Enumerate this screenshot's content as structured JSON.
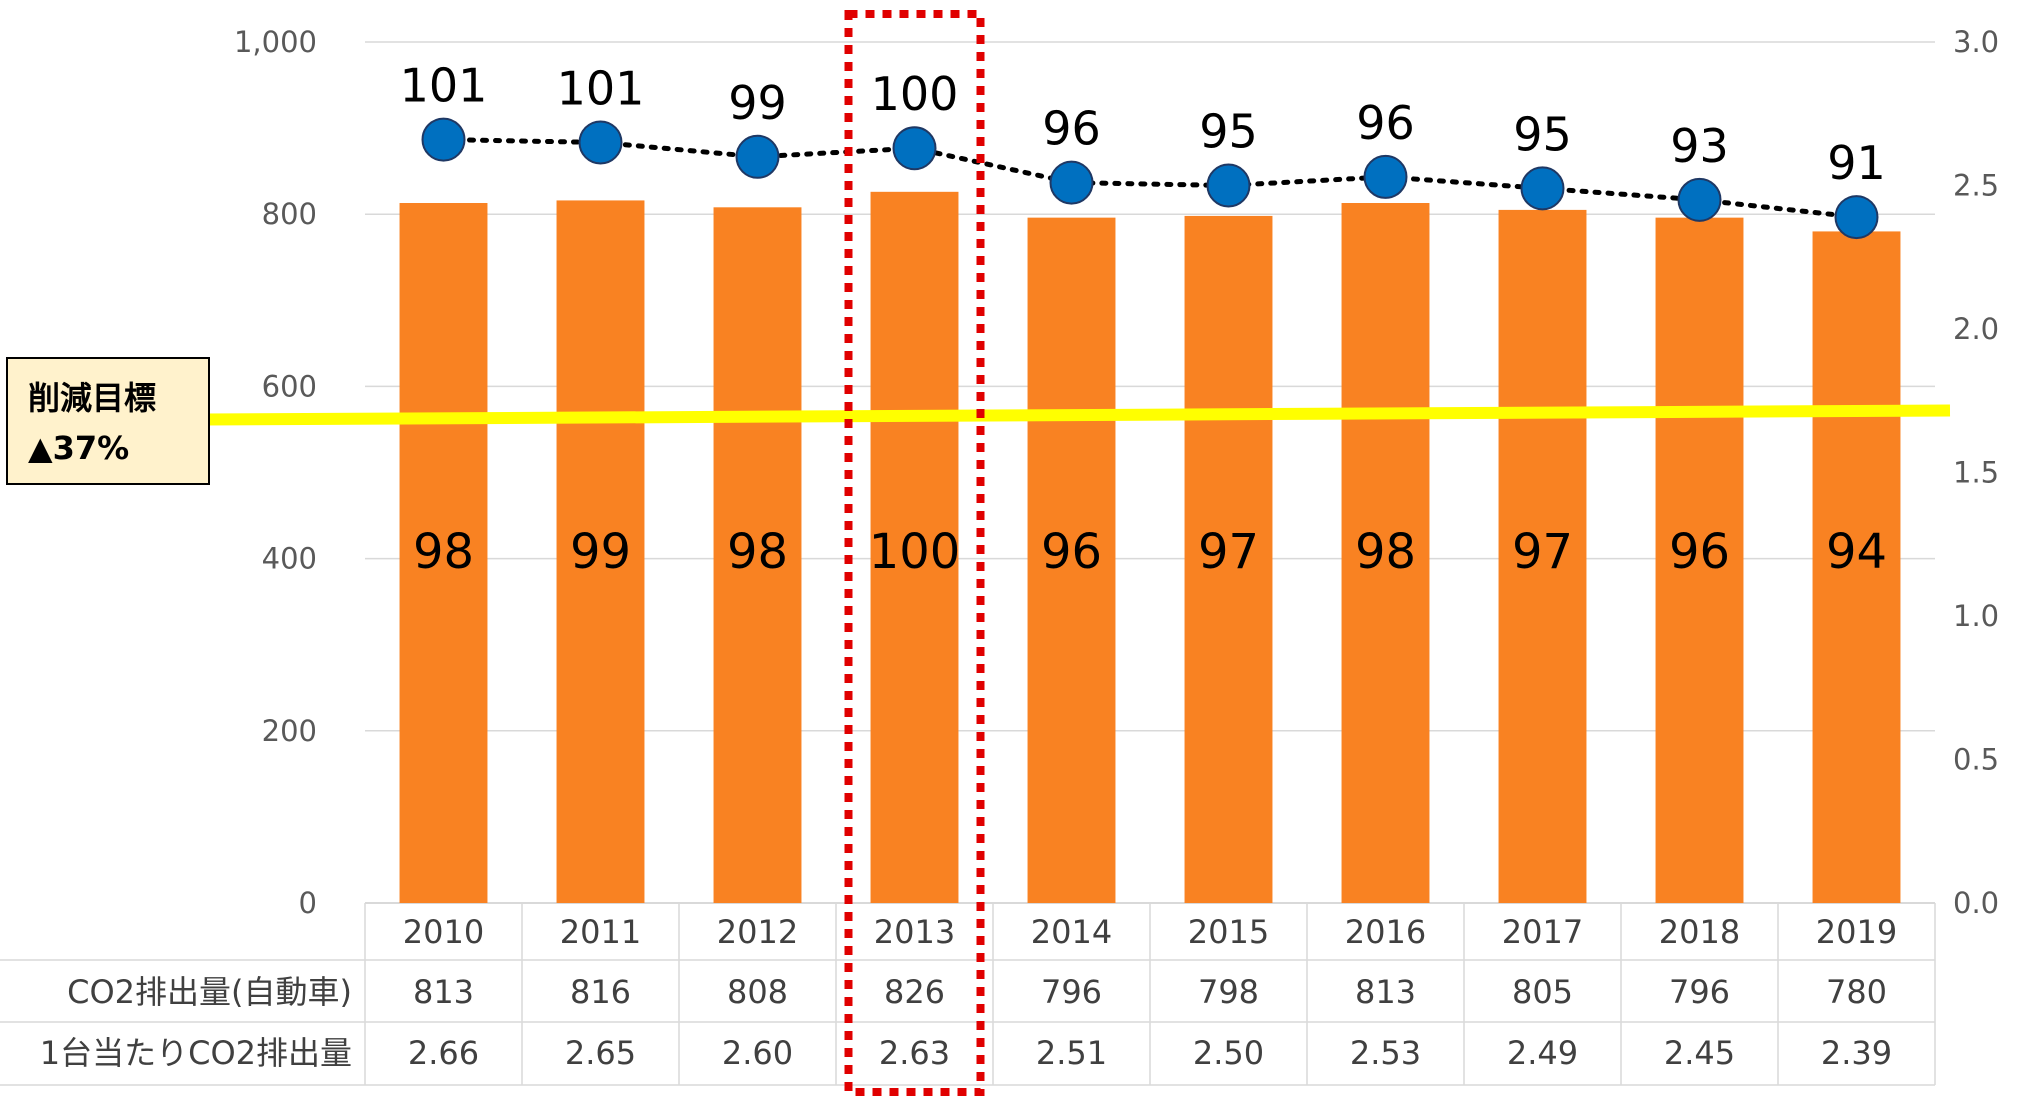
{
  "chart_data": {
    "type": "bar",
    "categories": [
      "2010",
      "2011",
      "2012",
      "2013",
      "2014",
      "2015",
      "2016",
      "2017",
      "2018",
      "2019"
    ],
    "series": [
      {
        "name": "CO2排出量(自動車)",
        "type": "bar",
        "axis": "left",
        "color": "#F98222",
        "values": [
          813,
          816,
          808,
          826,
          796,
          798,
          813,
          805,
          796,
          780
        ],
        "data_labels": [
          "98",
          "99",
          "98",
          "100",
          "96",
          "97",
          "98",
          "97",
          "96",
          "94"
        ]
      },
      {
        "name": "1台当たりCO2排出量",
        "type": "line",
        "axis": "right",
        "color": "#0070C0",
        "values": [
          2.66,
          2.65,
          2.6,
          2.63,
          2.51,
          2.5,
          2.53,
          2.49,
          2.45,
          2.39
        ],
        "data_labels": [
          "101",
          "101",
          "99",
          "100",
          "96",
          "95",
          "96",
          "95",
          "93",
          "91"
        ]
      }
    ],
    "y_left": {
      "min": 0,
      "max": 1000,
      "ticks": [
        "0",
        "200",
        "400",
        "600",
        "800",
        "1,000"
      ]
    },
    "y_right": {
      "min": 0,
      "max": 3,
      "ticks": [
        "0.0",
        "0.5",
        "1.0",
        "1.5",
        "2.0",
        "2.5",
        "3.0"
      ]
    },
    "grid": true,
    "data_table": {
      "row_labels": [
        "CO2排出量(自動車)",
        "1台当たりCO2排出量"
      ],
      "rows": [
        [
          "813",
          "816",
          "808",
          "826",
          "796",
          "798",
          "813",
          "805",
          "796",
          "780"
        ],
        [
          "2.66",
          "2.65",
          "2.60",
          "2.63",
          "2.51",
          "2.50",
          "2.53",
          "2.49",
          "2.45",
          "2.39"
        ]
      ]
    },
    "target_line": {
      "value": 565,
      "label_line1": "削減目標",
      "label_line2": "▲37%",
      "color": "#FFFF00"
    },
    "highlight": {
      "category": "2013",
      "color": "#E00000"
    }
  }
}
